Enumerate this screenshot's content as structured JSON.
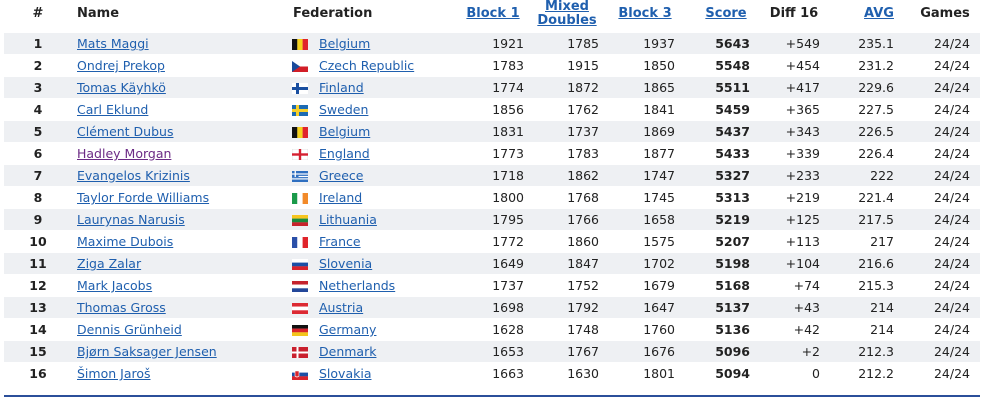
{
  "table": {
    "headers": [
      "#",
      "Name",
      "Federation",
      "Block 1",
      "Mixed Doubles",
      "Block 3",
      "Score",
      "Diff 16",
      "AVG",
      "Games"
    ],
    "rows": [
      [
        "1",
        "Mats Maggi",
        "Belgium",
        "1921",
        "1785",
        "1937",
        "5643",
        "+549",
        "235.1",
        "24/24"
      ],
      [
        "2",
        "Ondrej Prekop",
        "Czech Republic",
        "1783",
        "1915",
        "1850",
        "5548",
        "+454",
        "231.2",
        "24/24"
      ],
      [
        "3",
        "Tomas Käyhkö",
        "Finland",
        "1774",
        "1872",
        "1865",
        "5511",
        "+417",
        "229.6",
        "24/24"
      ],
      [
        "4",
        "Carl Eklund",
        "Sweden",
        "1856",
        "1762",
        "1841",
        "5459",
        "+365",
        "227.5",
        "24/24"
      ],
      [
        "5",
        "Clément Dubus",
        "Belgium",
        "1831",
        "1737",
        "1869",
        "5437",
        "+343",
        "226.5",
        "24/24"
      ],
      [
        "6",
        "Hadley Morgan",
        "England",
        "1773",
        "1783",
        "1877",
        "5433",
        "+339",
        "226.4",
        "24/24"
      ],
      [
        "7",
        "Evangelos Krizinis",
        "Greece",
        "1718",
        "1862",
        "1747",
        "5327",
        "+233",
        "222",
        "24/24"
      ],
      [
        "8",
        "Taylor Forde Williams",
        "Ireland",
        "1800",
        "1768",
        "1745",
        "5313",
        "+219",
        "221.4",
        "24/24"
      ],
      [
        "9",
        "Laurynas Narusis",
        "Lithuania",
        "1795",
        "1766",
        "1658",
        "5219",
        "+125",
        "217.5",
        "24/24"
      ],
      [
        "10",
        "Maxime Dubois",
        "France",
        "1772",
        "1860",
        "1575",
        "5207",
        "+113",
        "217",
        "24/24"
      ],
      [
        "11",
        "Ziga Zalar",
        "Slovenia",
        "1649",
        "1847",
        "1702",
        "5198",
        "+104",
        "216.6",
        "24/24"
      ],
      [
        "12",
        "Mark Jacobs",
        "Netherlands",
        "1737",
        "1752",
        "1679",
        "5168",
        "+74",
        "215.3",
        "24/24"
      ],
      [
        "13",
        "Thomas Gross",
        "Austria",
        "1698",
        "1792",
        "1647",
        "5137",
        "+43",
        "214",
        "24/24"
      ],
      [
        "14",
        "Dennis Grünheid",
        "Germany",
        "1628",
        "1748",
        "1760",
        "5136",
        "+42",
        "214",
        "24/24"
      ],
      [
        "15",
        "Bjørn Saksager Jensen",
        "Denmark",
        "1653",
        "1767",
        "1676",
        "5096",
        "+2",
        "212.3",
        "24/24"
      ],
      [
        "16",
        "Šimon Jaroš",
        "Slovakia",
        "1663",
        "1630",
        "1801",
        "5094",
        "0",
        "212.2",
        "24/24"
      ]
    ]
  }
}
